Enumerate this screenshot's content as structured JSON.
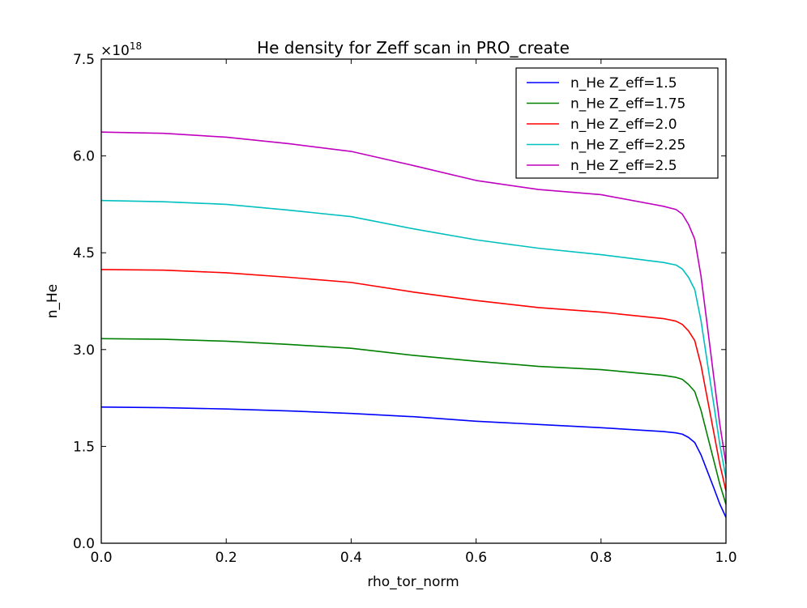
{
  "chart_data": {
    "type": "line",
    "title": "He density for Zeff scan in PRO_create",
    "xlabel": "rho_tor_norm",
    "ylabel": "n_He",
    "y_multiplier_label": "×10",
    "y_multiplier_exponent": "18",
    "xlim": [
      0.0,
      1.0
    ],
    "ylim": [
      0.0,
      7.5
    ],
    "xticks": [
      "0.0",
      "0.2",
      "0.4",
      "0.6",
      "0.8",
      "1.0"
    ],
    "yticks": [
      "0.0",
      "1.5",
      "3.0",
      "4.5",
      "6.0",
      "7.5"
    ],
    "grid": false,
    "legend_position": "top-right",
    "x": [
      0,
      0.1,
      0.2,
      0.3,
      0.4,
      0.5,
      0.6,
      0.7,
      0.8,
      0.9,
      0.92,
      0.93,
      0.94,
      0.95,
      0.96,
      0.97,
      0.98,
      0.99,
      1.0
    ],
    "series": [
      {
        "name": "n_He Z_eff=1.5",
        "color": "#0000ff",
        "values": [
          2.11,
          2.1,
          2.08,
          2.05,
          2.01,
          1.96,
          1.89,
          1.84,
          1.79,
          1.73,
          1.71,
          1.69,
          1.64,
          1.56,
          1.37,
          1.12,
          0.87,
          0.61,
          0.4
        ]
      },
      {
        "name": "n_He Z_eff=1.75",
        "color": "#008000",
        "values": [
          3.17,
          3.16,
          3.13,
          3.08,
          3.02,
          2.91,
          2.82,
          2.74,
          2.69,
          2.6,
          2.57,
          2.54,
          2.46,
          2.35,
          2.06,
          1.68,
          1.3,
          0.92,
          0.6
        ]
      },
      {
        "name": "n_He Z_eff=2.0",
        "color": "#ff0000",
        "values": [
          4.24,
          4.23,
          4.19,
          4.12,
          4.04,
          3.89,
          3.76,
          3.65,
          3.58,
          3.48,
          3.44,
          3.39,
          3.29,
          3.14,
          2.76,
          2.25,
          1.74,
          1.23,
          0.81
        ]
      },
      {
        "name": "n_He Z_eff=2.25",
        "color": "#00bfbf",
        "values": [
          5.31,
          5.29,
          5.25,
          5.16,
          5.06,
          4.87,
          4.7,
          4.57,
          4.47,
          4.35,
          4.31,
          4.25,
          4.12,
          3.93,
          3.45,
          2.81,
          2.18,
          1.54,
          1.01
        ]
      },
      {
        "name": "n_He Z_eff=2.5",
        "color": "#bf00bf",
        "values": [
          6.37,
          6.35,
          6.29,
          6.19,
          6.07,
          5.85,
          5.62,
          5.48,
          5.4,
          5.22,
          5.17,
          5.1,
          4.94,
          4.71,
          4.14,
          3.38,
          2.61,
          1.85,
          1.23
        ]
      }
    ]
  }
}
